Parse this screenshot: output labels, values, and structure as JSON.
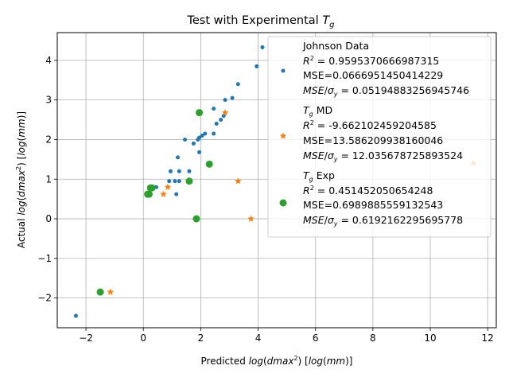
{
  "chart_data": {
    "type": "scatter",
    "title": "Test with Experimental T_g",
    "title_parts": {
      "prefix": "Test with Experimental ",
      "base": "T",
      "sub": "g"
    },
    "xlabel": "Predicted log(dmax²) [log(mm)]",
    "ylabel": "Actual log(dmax²) [log(mm)]",
    "xlim": [
      -3.0,
      12.3
    ],
    "ylim": [
      -2.75,
      4.7
    ],
    "xticks": [
      -2,
      0,
      2,
      4,
      6,
      8,
      10,
      12
    ],
    "yticks": [
      -2,
      -1,
      0,
      1,
      2,
      3,
      4
    ],
    "grid": true,
    "legend_position": "upper-right",
    "series": [
      {
        "name": "Johnson Data",
        "marker": "circle-small",
        "color": "#1f77b4",
        "stats": [
          "R² = 0.9595370666987315",
          "MSE=0.0666951450414229",
          "MSE/σy = 0.05194883256945746"
        ],
        "points": [
          [
            -2.35,
            -2.45
          ],
          [
            -1.55,
            -1.85
          ],
          [
            0.15,
            0.6
          ],
          [
            0.2,
            0.63
          ],
          [
            0.25,
            0.8
          ],
          [
            0.45,
            0.8
          ],
          [
            0.9,
            0.95
          ],
          [
            0.95,
            1.2
          ],
          [
            1.1,
            0.95
          ],
          [
            1.15,
            0.62
          ],
          [
            1.2,
            1.55
          ],
          [
            1.25,
            1.2
          ],
          [
            1.25,
            0.95
          ],
          [
            1.45,
            2.0
          ],
          [
            1.55,
            0.95
          ],
          [
            1.6,
            1.2
          ],
          [
            1.75,
            1.9
          ],
          [
            1.9,
            2.0
          ],
          [
            1.95,
            2.05
          ],
          [
            1.95,
            1.68
          ],
          [
            2.05,
            2.1
          ],
          [
            2.15,
            2.15
          ],
          [
            2.45,
            2.15
          ],
          [
            2.45,
            2.78
          ],
          [
            2.55,
            2.4
          ],
          [
            2.7,
            2.5
          ],
          [
            2.8,
            2.6
          ],
          [
            2.85,
            3.0
          ],
          [
            3.1,
            3.05
          ],
          [
            3.3,
            3.4
          ],
          [
            3.95,
            3.85
          ],
          [
            4.15,
            4.33
          ]
        ]
      },
      {
        "name": "T_g MD",
        "name_parts": {
          "base": "T",
          "sub": "g",
          "suffix": " MD"
        },
        "marker": "star",
        "color": "#ff7f0e",
        "stats": [
          "R² = -9.662102459204585",
          "MSE=13.586209938160046",
          "MSE/σy = 12.035678725893524"
        ],
        "points": [
          [
            -1.15,
            -1.85
          ],
          [
            0.7,
            0.62
          ],
          [
            0.85,
            0.8
          ],
          [
            2.85,
            2.68
          ],
          [
            3.3,
            0.95
          ],
          [
            3.75,
            0.0
          ],
          [
            11.5,
            1.4
          ]
        ]
      },
      {
        "name": "T_g Exp",
        "name_parts": {
          "base": "T",
          "sub": "g",
          "suffix": " Exp"
        },
        "marker": "circle-large",
        "color": "#2ca02c",
        "stats": [
          "R² = 0.451452050654248",
          "MSE=0.6989885559132543",
          "MSE/σy = 0.6192162295695778"
        ],
        "points": [
          [
            -1.5,
            -1.85
          ],
          [
            0.15,
            0.62
          ],
          [
            0.2,
            0.62
          ],
          [
            0.25,
            0.78
          ],
          [
            0.3,
            0.78
          ],
          [
            1.6,
            0.95
          ],
          [
            1.85,
            0.0
          ],
          [
            1.95,
            2.68
          ],
          [
            2.3,
            1.38
          ]
        ]
      }
    ]
  }
}
